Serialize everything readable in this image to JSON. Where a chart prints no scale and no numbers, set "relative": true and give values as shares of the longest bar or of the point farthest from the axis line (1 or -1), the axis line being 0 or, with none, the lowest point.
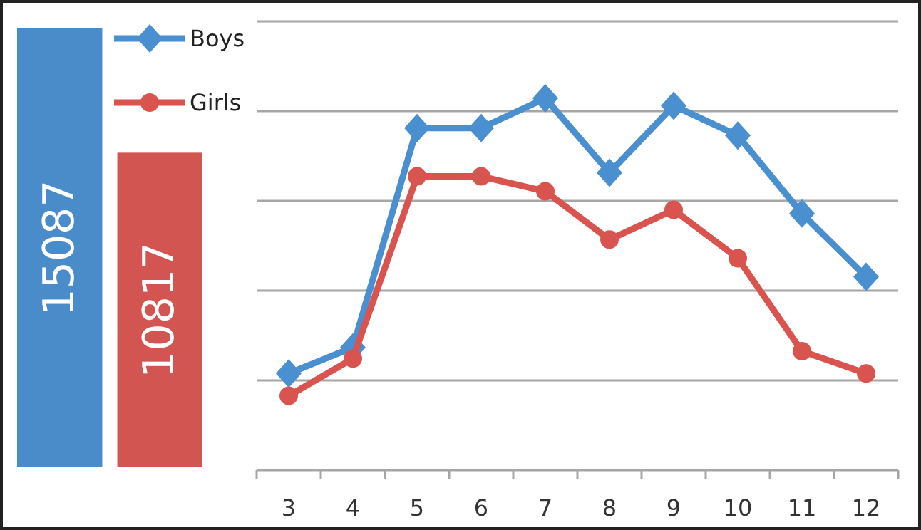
{
  "chart_data": [
    {
      "type": "bar",
      "categories": [
        null,
        null
      ],
      "values": [
        15087,
        10817
      ],
      "colors": [
        "#4a8cc9",
        "#d35552"
      ],
      "data_labels": true
    },
    {
      "type": "line",
      "categories": [
        "3",
        "4",
        "5",
        "6",
        "7",
        "8",
        "9",
        "10",
        "11",
        "12"
      ],
      "relative": true,
      "grid": "y",
      "legend": "top left",
      "series": [
        {
          "name": "Boys",
          "color": "#4a8fcf",
          "marker": "diamond",
          "values": [
            0.26,
            0.33,
            0.92,
            0.92,
            1,
            0.8,
            0.98,
            0.9,
            0.69,
            0.52
          ]
        },
        {
          "name": "Girls",
          "color": "#d9534f",
          "marker": "circle",
          "values": [
            0.2,
            0.3,
            0.79,
            0.79,
            0.75,
            0.62,
            0.7,
            0.57,
            0.32,
            0.26
          ]
        }
      ]
    }
  ]
}
